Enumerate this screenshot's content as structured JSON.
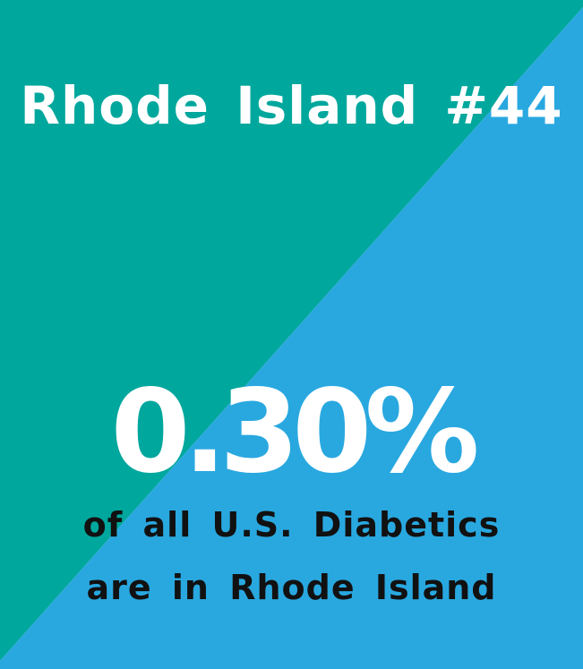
{
  "colors": {
    "upper_left": "#00a79d",
    "lower_right": "#29a8e0",
    "title_text": "#ffffff",
    "stat_text": "#ffffff",
    "caption_text": "#111111"
  },
  "title": "Rhode Island #44",
  "stat": "0.30%",
  "caption": {
    "line1": "of all U.S. Diabetics",
    "line2": "are in Rhode Island"
  }
}
